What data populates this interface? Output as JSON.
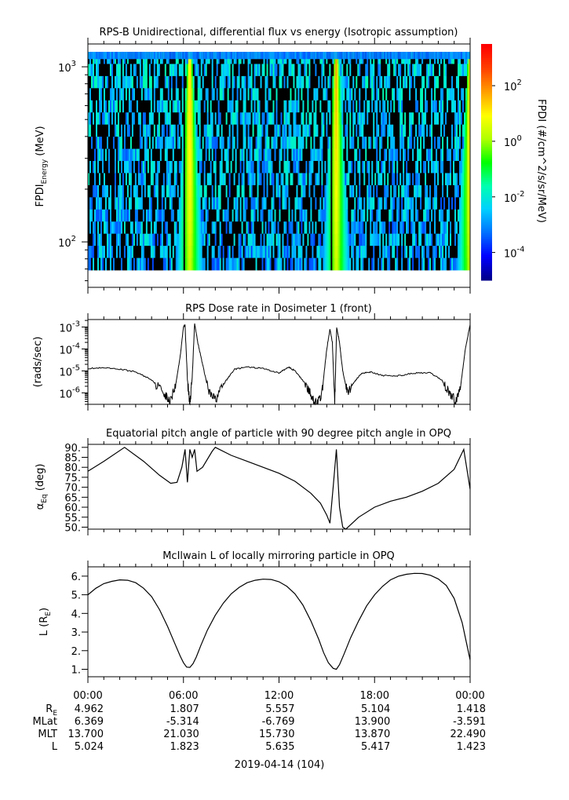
{
  "figure": {
    "date_label": "2019-04-14 (104)",
    "x_tick_labels": [
      "00:00",
      "06:00",
      "12:00",
      "18:00",
      "00:00"
    ]
  },
  "ephemeris": {
    "rows": [
      {
        "label": "R",
        "label_sub": "E",
        "values": [
          "4.962",
          "1.807",
          "5.557",
          "5.104",
          "1.418"
        ]
      },
      {
        "label": "MLat",
        "label_sub": "",
        "values": [
          "6.369",
          "-5.314",
          "-6.769",
          "13.900",
          "-3.591"
        ]
      },
      {
        "label": "MLT",
        "label_sub": "",
        "values": [
          "13.700",
          "21.030",
          "15.730",
          "13.870",
          "22.490"
        ]
      },
      {
        "label": "L",
        "label_sub": "",
        "values": [
          "5.024",
          "1.823",
          "5.635",
          "5.417",
          "1.423"
        ]
      }
    ]
  },
  "colors": {
    "axis": "#000000",
    "trace": "#000000",
    "colormap": [
      "#00008b",
      "#0000ff",
      "#0070ff",
      "#00d0ff",
      "#00ffb0",
      "#00ff00",
      "#b0ff00",
      "#ffff00",
      "#ffa000",
      "#ff4000",
      "#ff0000"
    ],
    "no_data": "#000000"
  },
  "chart_data": [
    {
      "type": "heatmap",
      "title": "RPS-B  Unidirectional, differential flux vs energy (Isotropic assumption)",
      "ylabel": "FPDI",
      "ylabel_sub": "Energy",
      "ylabel_suffix": " (MeV)",
      "yscale": "log",
      "ylim": [
        55,
        1350
      ],
      "xlim_hours": [
        0,
        24
      ],
      "y_ticks": [
        {
          "label": "10",
          "exp": "3"
        },
        {
          "label": "10",
          "exp": "2"
        }
      ],
      "y_tick_values": [
        1000,
        100
      ],
      "colorbar": {
        "label": "FPDI (#/cm^2/s/sr/MeV)",
        "scale": "log",
        "range_log10": [
          -5,
          3.5
        ],
        "ticks": [
          {
            "label": "10",
            "exp": "2"
          },
          {
            "label": "10",
            "exp": "0"
          },
          {
            "label": "10",
            "exp": "-2"
          },
          {
            "label": "10",
            "exp": "-4"
          }
        ],
        "tick_log10": [
          2,
          0,
          -2,
          -4
        ]
      },
      "belt_passes_hours": [
        6.4,
        15.6,
        24.0
      ],
      "belt_peak_log10_flux": 2.0,
      "background_log10_flux": -3.3
    },
    {
      "type": "line",
      "title": "RPS  Dose rate in Dosimeter 1 (front)",
      "ylabel": "(rads/sec)",
      "yscale": "log",
      "ylim": [
        3e-07,
        0.0022
      ],
      "xlim_hours": [
        0,
        24
      ],
      "y_ticks": [
        {
          "label": "10",
          "exp": "-3"
        },
        {
          "label": "10",
          "exp": "-4"
        },
        {
          "label": "10",
          "exp": "-5"
        },
        {
          "label": "10",
          "exp": "-6"
        }
      ],
      "y_tick_values": [
        0.001,
        0.0001,
        1e-05,
        1e-06
      ],
      "x": [
        0,
        1,
        2,
        3,
        4,
        4.8,
        5.1,
        5.5,
        5.8,
        6.0,
        6.1,
        6.25,
        6.4,
        6.55,
        6.7,
        6.9,
        7.2,
        7.6,
        8.0,
        8.6,
        9.2,
        10.0,
        11.0,
        12.0,
        12.6,
        13.0,
        13.6,
        14.0,
        14.4,
        14.7,
        15.0,
        15.2,
        15.35,
        15.5,
        15.62,
        15.8,
        16.0,
        16.3,
        16.7,
        17.2,
        17.8,
        18.5,
        19.5,
        20.5,
        21.5,
        22.2,
        22.7,
        23.1,
        23.4,
        23.7,
        24.0
      ],
      "y": [
        1.3e-05,
        1.35e-05,
        1.2e-05,
        9e-06,
        4e-06,
        1e-06,
        4e-07,
        2e-06,
        5e-05,
        0.001,
        0.0013,
        4e-06,
        3e-07,
        5e-06,
        0.0015,
        0.0002,
        2e-05,
        1e-06,
        5e-07,
        3e-06,
        1.2e-05,
        1.5e-05,
        1.3e-05,
        8e-06,
        1.5e-05,
        1e-05,
        3e-06,
        8e-07,
        3e-07,
        1e-06,
        0.0001,
        0.0008,
        0.0002,
        3e-07,
        0.001,
        0.0002,
        1e-05,
        1e-06,
        3e-06,
        8e-06,
        9e-06,
        6e-06,
        6e-06,
        8e-06,
        8e-06,
        4e-06,
        1e-06,
        4e-07,
        2e-06,
        0.0001,
        0.0013
      ]
    },
    {
      "type": "line",
      "title": "Equatorial pitch angle of particle with 90 degree pitch angle in OPQ",
      "ylabel": "α",
      "ylabel_sub": "Eq",
      "ylabel_suffix": " (deg)",
      "ylim": [
        49,
        91.5
      ],
      "xlim_hours": [
        0,
        24
      ],
      "y_tick_values": [
        90,
        85,
        80,
        75,
        70,
        65,
        60,
        55,
        50
      ],
      "y_tick_labels": [
        "90.",
        "85.",
        "80.",
        "75.",
        "70.",
        "65.",
        "60.",
        "55.",
        "50."
      ],
      "x": [
        0,
        1,
        2.3,
        3.5,
        4.5,
        5.2,
        5.6,
        5.9,
        6.1,
        6.25,
        6.4,
        6.55,
        6.7,
        6.85,
        7.2,
        7.8,
        8.0,
        9,
        10,
        11,
        12,
        13,
        14,
        14.6,
        15.0,
        15.2,
        15.4,
        15.6,
        15.8,
        16.0,
        16.2,
        17,
        18,
        19,
        20,
        21,
        22,
        23,
        23.6,
        24
      ],
      "y": [
        78,
        83,
        90,
        83,
        76,
        72,
        72.5,
        80,
        89,
        72.5,
        89,
        85,
        89,
        78,
        80,
        88,
        90,
        86,
        83,
        80,
        77,
        73,
        67,
        62,
        56,
        52,
        70,
        89,
        60,
        50,
        48.5,
        55,
        60,
        63,
        65,
        68,
        72,
        79,
        89,
        69
      ]
    },
    {
      "type": "line",
      "title": "McIlwain L of locally mirroring particle in OPQ",
      "ylabel": "L (R",
      "ylabel_sub": "E",
      "ylabel_suffix": ")",
      "ylim": [
        0.6,
        6.5
      ],
      "xlim_hours": [
        0,
        24
      ],
      "y_tick_values": [
        6,
        5,
        4,
        3,
        2,
        1
      ],
      "y_tick_labels": [
        "6.",
        "5.",
        "4.",
        "3.",
        "2.",
        "1."
      ],
      "x": [
        0,
        0.5,
        1,
        1.5,
        2,
        2.5,
        3,
        3.5,
        4,
        4.5,
        5,
        5.5,
        5.8,
        6.0,
        6.2,
        6.4,
        6.6,
        6.8,
        7.1,
        7.5,
        8,
        8.5,
        9,
        9.5,
        10,
        10.5,
        11,
        11.5,
        12,
        12.5,
        13,
        13.5,
        14,
        14.5,
        14.8,
        15.1,
        15.4,
        15.6,
        15.8,
        16.1,
        16.5,
        17,
        17.5,
        18,
        18.5,
        19,
        19.5,
        20,
        20.5,
        21,
        21.5,
        22,
        22.5,
        23,
        23.5,
        24
      ],
      "y": [
        5.0,
        5.35,
        5.6,
        5.72,
        5.8,
        5.78,
        5.65,
        5.35,
        4.9,
        4.2,
        3.3,
        2.3,
        1.7,
        1.35,
        1.12,
        1.1,
        1.3,
        1.65,
        2.3,
        3.1,
        3.9,
        4.55,
        5.05,
        5.4,
        5.65,
        5.78,
        5.84,
        5.82,
        5.7,
        5.45,
        5.05,
        4.45,
        3.6,
        2.6,
        1.9,
        1.35,
        1.05,
        1.0,
        1.25,
        1.85,
        2.7,
        3.6,
        4.4,
        5.0,
        5.45,
        5.8,
        6.0,
        6.1,
        6.15,
        6.14,
        6.05,
        5.85,
        5.5,
        4.8,
        3.5,
        1.5
      ]
    }
  ]
}
